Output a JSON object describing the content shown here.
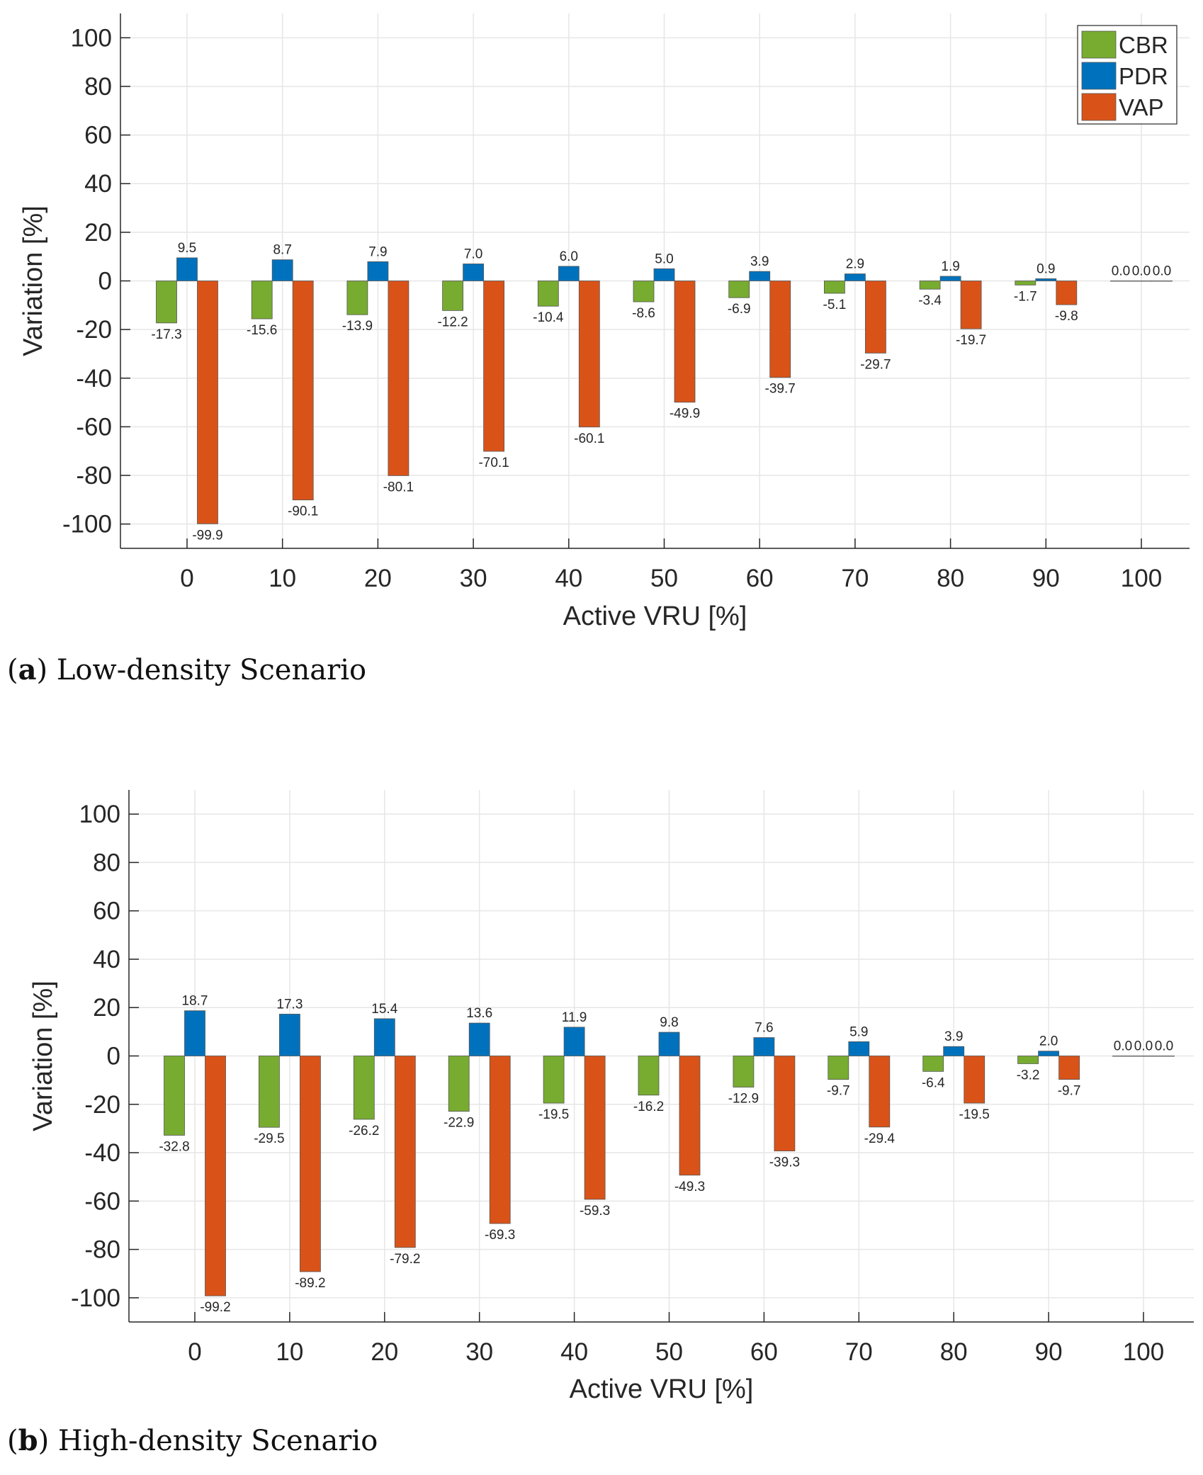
{
  "chart_data": [
    {
      "type": "bar",
      "title": "",
      "caption_letter": "a",
      "caption_text": "Low-density Scenario",
      "xlabel": "Active VRU [%]",
      "ylabel": "Variation [%]",
      "ylim": [
        -110,
        110
      ],
      "yticks": [
        -100,
        -80,
        -60,
        -40,
        -20,
        0,
        20,
        40,
        60,
        80,
        100
      ],
      "categories": [
        "0",
        "10",
        "20",
        "30",
        "40",
        "50",
        "60",
        "70",
        "80",
        "90",
        "100"
      ],
      "grid": true,
      "legend": "top-right",
      "series": [
        {
          "name": "CBR",
          "color": "#77AC30",
          "values": [
            -17.3,
            -15.6,
            -13.9,
            -12.2,
            -10.4,
            -8.6,
            -6.9,
            -5.1,
            -3.4,
            -1.7,
            0.0
          ]
        },
        {
          "name": "PDR",
          "color": "#0072BD",
          "values": [
            9.5,
            8.7,
            7.9,
            7.0,
            6.0,
            5.0,
            3.9,
            2.9,
            1.9,
            0.9,
            0.0
          ]
        },
        {
          "name": "VAP",
          "color": "#D95319",
          "values": [
            -99.9,
            -90.1,
            -80.1,
            -70.1,
            -60.1,
            -49.9,
            -39.7,
            -29.7,
            -19.7,
            -9.8,
            0.0
          ]
        }
      ]
    },
    {
      "type": "bar",
      "title": "",
      "caption_letter": "b",
      "caption_text": "High-density Scenario",
      "xlabel": "Active VRU [%]",
      "ylabel": "Variation [%]",
      "ylim": [
        -110,
        110
      ],
      "yticks": [
        -100,
        -80,
        -60,
        -40,
        -20,
        0,
        20,
        40,
        60,
        80,
        100
      ],
      "categories": [
        "0",
        "10",
        "20",
        "30",
        "40",
        "50",
        "60",
        "70",
        "80",
        "90",
        "100"
      ],
      "grid": true,
      "legend": "none",
      "series": [
        {
          "name": "CBR",
          "color": "#77AC30",
          "values": [
            -32.8,
            -29.5,
            -26.2,
            -22.9,
            -19.5,
            -16.2,
            -12.9,
            -9.7,
            -6.4,
            -3.2,
            0.0
          ]
        },
        {
          "name": "PDR",
          "color": "#0072BD",
          "values": [
            18.7,
            17.3,
            15.4,
            13.6,
            11.9,
            9.8,
            7.6,
            5.9,
            3.9,
            2.0,
            0.0
          ]
        },
        {
          "name": "VAP",
          "color": "#D95319",
          "values": [
            -99.2,
            -89.2,
            -79.2,
            -69.3,
            -59.3,
            -49.3,
            -39.3,
            -29.4,
            -19.5,
            -9.7,
            0.0
          ]
        }
      ]
    }
  ]
}
